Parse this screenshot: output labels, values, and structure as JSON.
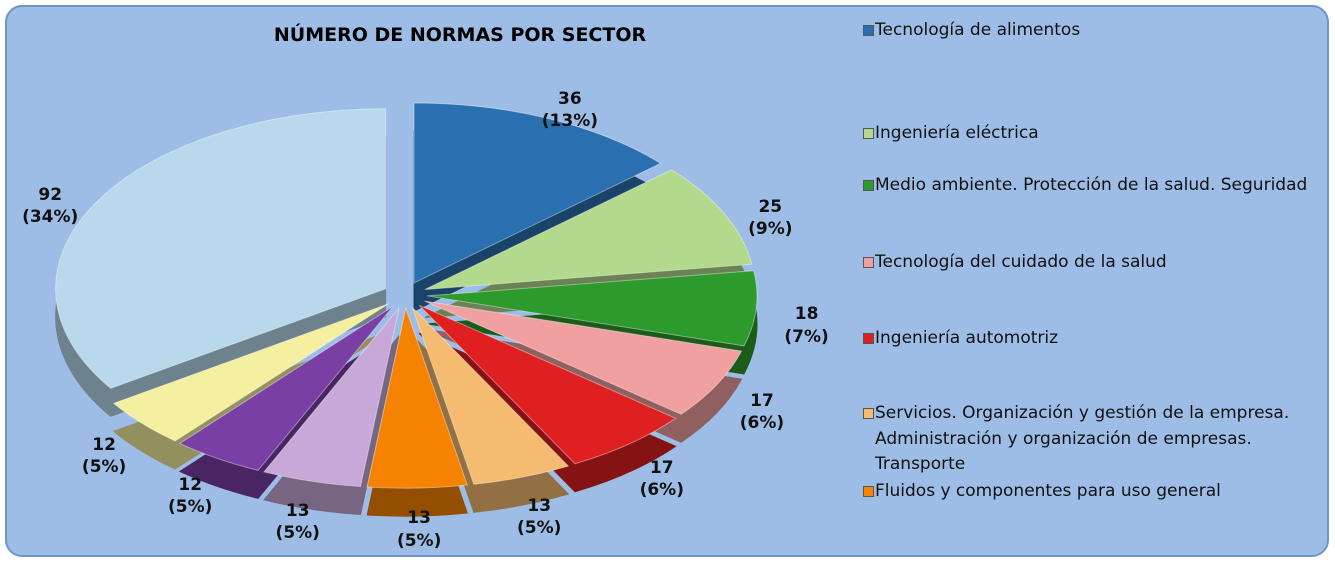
{
  "chart_data": {
    "type": "pie",
    "title": "NÚMERO DE NORMAS POR SECTOR",
    "categories": [
      "Tecnología de alimentos",
      "Ingeniería eléctrica",
      "Medio ambiente. Protección de la salud. Seguridad",
      "Tecnología del cuidado de la salud",
      "Ingeniería automotriz",
      "Servicios. Organización y gestión de la empresa. Administración y organización de empresas. Transporte",
      "Fluidos y componentes para uso general",
      null,
      null,
      null,
      null
    ],
    "values": [
      36,
      25,
      18,
      17,
      17,
      13,
      13,
      13,
      12,
      12,
      92
    ],
    "value_labels": [
      "36\n(13%)",
      "25\n(9%)",
      "18\n(7%)",
      "17\n(6%)",
      "17\n(6%)",
      "13\n(5%)",
      "13\n(5%)",
      "13\n(5%)",
      "12\n(5%)",
      "12\n(5%)",
      "92\n(34%)"
    ],
    "colors": [
      "#2a6faf",
      "#b3d98c",
      "#2d9a2d",
      "#f0a0a0",
      "#e02020",
      "#f5bb70",
      "#f58200",
      "#c8a8d8",
      "#7a3fa5",
      "#f5f0a0",
      "#b8d8ec"
    ],
    "legend": "right"
  }
}
